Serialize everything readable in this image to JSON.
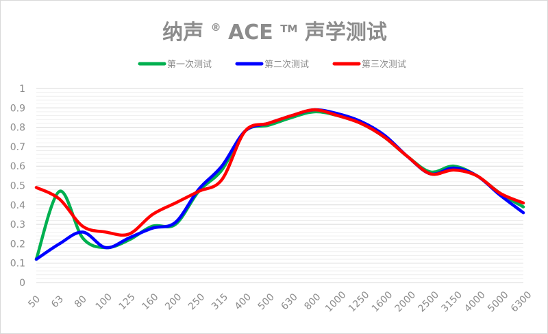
{
  "chart_data": {
    "type": "line",
    "title": {
      "part1": "纳声",
      "mark1": "®",
      "part2": "ACE",
      "mark2": "TM",
      "part3": "声学测试"
    },
    "categories": [
      "50",
      "63",
      "80",
      "100",
      "125",
      "160",
      "200",
      "250",
      "315",
      "400",
      "500",
      "630",
      "800",
      "1000",
      "1250",
      "1600",
      "2000",
      "2500",
      "3150",
      "4000",
      "5000",
      "6300"
    ],
    "series": [
      {
        "name": "第一次测试",
        "color": "#00b050",
        "values": [
          0.12,
          0.47,
          0.23,
          0.18,
          0.22,
          0.29,
          0.3,
          0.47,
          0.58,
          0.78,
          0.81,
          0.85,
          0.88,
          0.86,
          0.82,
          0.75,
          0.65,
          0.57,
          0.6,
          0.55,
          0.46,
          0.39
        ]
      },
      {
        "name": "第二次测试",
        "color": "#0000ff",
        "values": [
          0.12,
          0.2,
          0.26,
          0.18,
          0.23,
          0.28,
          0.31,
          0.48,
          0.6,
          0.78,
          0.82,
          0.86,
          0.89,
          0.87,
          0.83,
          0.76,
          0.65,
          0.56,
          0.59,
          0.55,
          0.45,
          0.36
        ]
      },
      {
        "name": "第三次测试",
        "color": "#ff0000",
        "values": [
          0.49,
          0.43,
          0.29,
          0.26,
          0.25,
          0.35,
          0.41,
          0.47,
          0.53,
          0.78,
          0.82,
          0.86,
          0.89,
          0.86,
          0.82,
          0.75,
          0.65,
          0.56,
          0.58,
          0.55,
          0.46,
          0.41
        ]
      }
    ],
    "yticks": [
      "0",
      "0.1",
      "0.2",
      "0.3",
      "0.4",
      "0.5",
      "0.6",
      "0.7",
      "0.8",
      "0.9",
      "1"
    ],
    "ylim": [
      0,
      1
    ],
    "grid": "horizontal",
    "legend": "top-center",
    "xlabel": "",
    "ylabel": ""
  }
}
